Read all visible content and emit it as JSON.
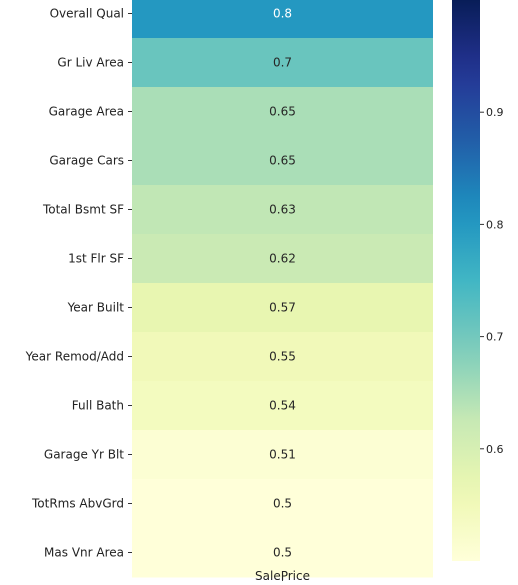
{
  "chart_data": {
    "type": "heatmap",
    "title": "",
    "xlabel": "",
    "ylabel": "",
    "columns": [
      "SalePrice"
    ],
    "rows": [
      {
        "label": "Overall Qual",
        "value": 0.8,
        "annotation": "0.8"
      },
      {
        "label": "Gr Liv Area",
        "value": 0.71,
        "annotation": "0.7"
      },
      {
        "label": "Garage Area",
        "value": 0.65,
        "annotation": "0.65"
      },
      {
        "label": "Garage Cars",
        "value": 0.65,
        "annotation": "0.65"
      },
      {
        "label": "Total Bsmt SF",
        "value": 0.63,
        "annotation": "0.63"
      },
      {
        "label": "1st Flr SF",
        "value": 0.62,
        "annotation": "0.62"
      },
      {
        "label": "Year Built",
        "value": 0.57,
        "annotation": "0.57"
      },
      {
        "label": "Year Remod/Add",
        "value": 0.55,
        "annotation": "0.55"
      },
      {
        "label": "Full Bath",
        "value": 0.54,
        "annotation": "0.54"
      },
      {
        "label": "Garage Yr Blt",
        "value": 0.51,
        "annotation": "0.51"
      },
      {
        "label": "TotRms AbvGrd",
        "value": 0.5,
        "annotation": "0.5"
      },
      {
        "label": "Mas Vnr Area",
        "value": 0.5,
        "annotation": "0.5"
      }
    ],
    "colormap": "YlGnBu",
    "colorbar": {
      "range": [
        0.5,
        1.0
      ],
      "ticks": [
        0.6,
        0.7,
        0.8,
        0.9
      ],
      "tick_labels": [
        "0.6",
        "0.7",
        "0.8",
        "0.9"
      ],
      "position": "right"
    },
    "grid": false
  }
}
